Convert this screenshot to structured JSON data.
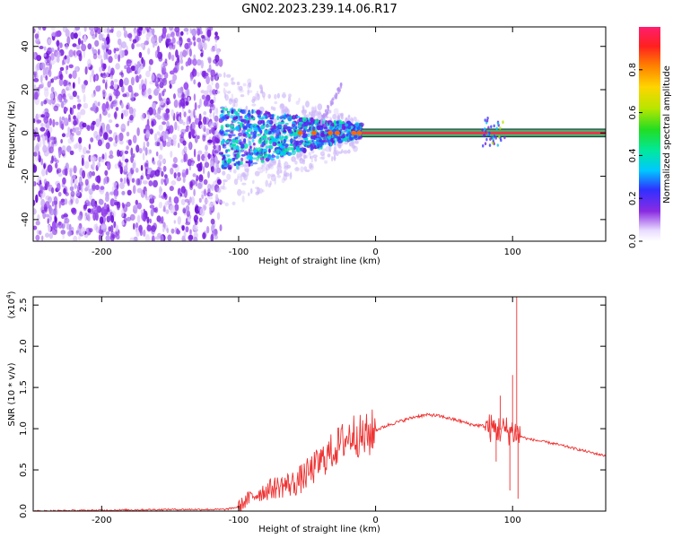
{
  "figure": {
    "title": "GN02.2023.239.14.06.R17"
  },
  "colors": {
    "line": "#ee3333",
    "frame": "#000000",
    "band_core": "#e8384a",
    "band_edge": "#1a9e6e"
  },
  "chart_data": [
    {
      "type": "heatmap",
      "title": "GN02.2023.239.14.06.R17",
      "xlabel": "Height of straight line (km)",
      "ylabel": "Frequency (Hz)",
      "xlim": [
        -250,
        168
      ],
      "ylim": [
        -50,
        49
      ],
      "xticks": [
        -200,
        -100,
        0,
        100
      ],
      "yticks": [
        -40,
        -20,
        0,
        20,
        40
      ],
      "colorbar": {
        "label": "Normalized spectral amplitude",
        "range": [
          0.0,
          1.0
        ],
        "ticks": [
          0.0,
          0.2,
          0.4,
          0.6,
          0.8
        ],
        "tick_labels": [
          "0.0",
          "0.2",
          "0.4",
          "0.6",
          "0.8"
        ]
      },
      "regions": [
        {
          "name": "noise",
          "x_range": [
            -250,
            -113
          ],
          "freq_range": [
            -50,
            49
          ],
          "amplitude": 0.1
        },
        {
          "name": "spread",
          "x_range": [
            -113,
            -10
          ],
          "freq_range": [
            -15,
            8
          ],
          "amplitude": 0.35
        },
        {
          "name": "tone",
          "x_range": [
            -10,
            168
          ],
          "freq": 0,
          "amplitude": 1.0
        }
      ]
    },
    {
      "type": "line",
      "xlabel": "Height of straight line (km)",
      "ylabel": "SNR (10 * v/v)",
      "y_multiplier": "(x10",
      "y_multiplier_exp": "4",
      "xlim": [
        -250,
        168
      ],
      "ylim": [
        0,
        2.6
      ],
      "xticks": [
        -200,
        -100,
        0,
        100
      ],
      "yticks": [
        0.0,
        0.5,
        1.0,
        1.5,
        2.0,
        2.5
      ],
      "ytick_labels": [
        "0.0",
        "0.5",
        "1.0",
        "1.5",
        "2.0",
        "2.5"
      ],
      "series": [
        {
          "color": "#ee3333",
          "x": [
            -250,
            -200,
            -150,
            -110,
            -100,
            -95,
            -90,
            -85,
            -80,
            -75,
            -70,
            -65,
            -60,
            -55,
            -50,
            -45,
            -40,
            -35,
            -30,
            -25,
            -20,
            -15,
            -10,
            -5,
            0,
            10,
            20,
            30,
            40,
            50,
            60,
            70,
            80,
            85,
            90,
            95,
            100,
            103,
            105,
            110,
            120,
            130,
            140,
            150,
            160,
            168
          ],
          "y": [
            0.0,
            0.01,
            0.02,
            0.02,
            0.05,
            0.12,
            0.18,
            0.22,
            0.25,
            0.28,
            0.3,
            0.32,
            0.33,
            0.38,
            0.45,
            0.52,
            0.6,
            0.68,
            0.75,
            0.83,
            0.9,
            0.95,
            0.88,
            0.92,
            0.98,
            1.05,
            1.1,
            1.15,
            1.17,
            1.14,
            1.1,
            1.05,
            1.03,
            1.0,
            0.99,
            0.98,
            0.97,
            0.96,
            0.92,
            0.88,
            0.85,
            0.82,
            0.78,
            0.74,
            0.7,
            0.67
          ]
        }
      ],
      "spikes": [
        {
          "x": 103,
          "y": 2.6
        },
        {
          "x": 104,
          "y": 0.15
        },
        {
          "x": 100,
          "y": 1.65
        },
        {
          "x": 98,
          "y": 0.25
        },
        {
          "x": 91,
          "y": 1.4
        },
        {
          "x": 88,
          "y": 0.6
        }
      ]
    }
  ]
}
